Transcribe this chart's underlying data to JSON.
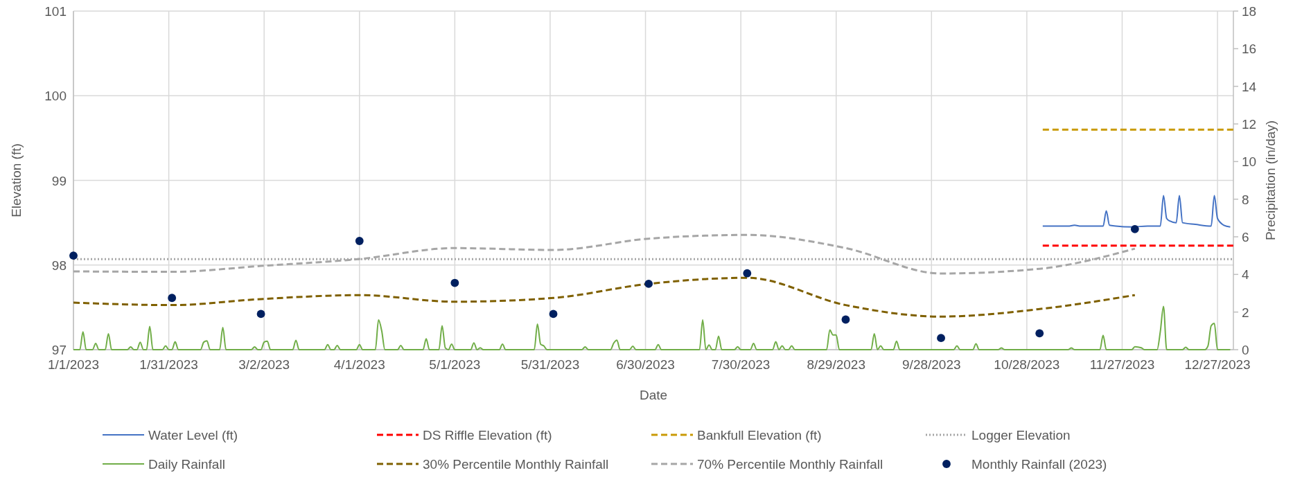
{
  "chart_data": {
    "type": "line",
    "xlabel": "Date",
    "ylabel": "Elevation (ft)",
    "y2label": "Precipitation (in/day)",
    "xlim": [
      "2023-01-01",
      "2024-01-01"
    ],
    "xticks": [
      {
        "value": "2023-01-01",
        "label": "1/1/2023"
      },
      {
        "value": "2023-01-31",
        "label": "1/31/2023"
      },
      {
        "value": "2023-03-02",
        "label": "3/2/2023"
      },
      {
        "value": "2023-04-01",
        "label": "4/1/2023"
      },
      {
        "value": "2023-05-01",
        "label": "5/1/2023"
      },
      {
        "value": "2023-05-31",
        "label": "5/31/2023"
      },
      {
        "value": "2023-06-30",
        "label": "6/30/2023"
      },
      {
        "value": "2023-07-30",
        "label": "7/30/2023"
      },
      {
        "value": "2023-08-29",
        "label": "8/29/2023"
      },
      {
        "value": "2023-09-28",
        "label": "9/28/2023"
      },
      {
        "value": "2023-10-28",
        "label": "10/28/2023"
      },
      {
        "value": "2023-11-27",
        "label": "11/27/2023"
      },
      {
        "value": "2023-12-27",
        "label": "12/27/2023"
      }
    ],
    "ylim": [
      97,
      101
    ],
    "yticks": [
      97,
      98,
      99,
      100,
      101
    ],
    "y2lim": [
      0,
      18
    ],
    "y2ticks": [
      0,
      2,
      4,
      6,
      8,
      10,
      12,
      14,
      16,
      18
    ],
    "grid": true,
    "legend": "bottom",
    "series": [
      {
        "name": "Water Level (ft)",
        "color": "#4472c4",
        "line_style": "solid",
        "x": [
          "2023-11-02",
          "2023-11-10",
          "2023-11-12",
          "2023-11-14",
          "2023-11-21",
          "2023-11-22",
          "2023-11-23",
          "2023-11-25",
          "2023-11-30",
          "2023-12-05",
          "2023-12-09",
          "2023-12-10",
          "2023-12-11",
          "2023-12-12",
          "2023-12-14",
          "2023-12-15",
          "2023-12-16",
          "2023-12-20",
          "2023-12-25",
          "2023-12-26",
          "2023-12-27",
          "2023-12-29",
          "2023-12-31"
        ],
        "values": [
          98.46,
          98.46,
          98.47,
          98.46,
          98.46,
          98.64,
          98.47,
          98.46,
          98.45,
          98.46,
          98.46,
          98.82,
          98.55,
          98.52,
          98.5,
          98.82,
          98.5,
          98.48,
          98.46,
          98.82,
          98.55,
          98.47,
          98.45
        ]
      },
      {
        "name": "DS Riffle Elevation (ft)",
        "color": "#ff0000",
        "line_style": "dashed",
        "x": [
          "2023-11-02",
          "2024-01-01"
        ],
        "values": [
          98.23,
          98.23
        ]
      },
      {
        "name": "Bankfull Elevation (ft)",
        "color": "#c99a06",
        "line_style": "dashed",
        "x": [
          "2023-11-02",
          "2024-01-01"
        ],
        "values": [
          99.6,
          99.6
        ]
      },
      {
        "name": "Logger Elevation",
        "color": "#a6a6a6",
        "line_style": "dotted",
        "x": [
          "2023-01-01",
          "2024-01-01"
        ],
        "values": [
          98.07,
          98.07
        ]
      },
      {
        "name": "Daily Rainfall",
        "color": "#70ad47",
        "line_style": "solid",
        "axis": "y2",
        "x": [
          "2023-01-01",
          "2023-01-03",
          "2023-01-04",
          "2023-01-05",
          "2023-01-07",
          "2023-01-08",
          "2023-01-09",
          "2023-01-11",
          "2023-01-12",
          "2023-01-13",
          "2023-01-18",
          "2023-01-19",
          "2023-01-20",
          "2023-01-21",
          "2023-01-22",
          "2023-01-23",
          "2023-01-24",
          "2023-01-25",
          "2023-01-26",
          "2023-01-29",
          "2023-01-30",
          "2023-01-31",
          "2023-02-01",
          "2023-02-02",
          "2023-02-03",
          "2023-02-10",
          "2023-02-11",
          "2023-02-12",
          "2023-02-13",
          "2023-02-16",
          "2023-02-17",
          "2023-02-18",
          "2023-02-26",
          "2023-02-27",
          "2023-02-28",
          "2023-03-01",
          "2023-03-02",
          "2023-03-03",
          "2023-03-04",
          "2023-03-11",
          "2023-03-12",
          "2023-03-13",
          "2023-03-21",
          "2023-03-22",
          "2023-03-23",
          "2023-03-24",
          "2023-03-25",
          "2023-03-26",
          "2023-03-31",
          "2023-04-01",
          "2023-04-02",
          "2023-04-06",
          "2023-04-07",
          "2023-04-08",
          "2023-04-09",
          "2023-04-13",
          "2023-04-14",
          "2023-04-15",
          "2023-04-21",
          "2023-04-22",
          "2023-04-23",
          "2023-04-26",
          "2023-04-27",
          "2023-04-28",
          "2023-04-29",
          "2023-04-30",
          "2023-05-01",
          "2023-05-06",
          "2023-05-07",
          "2023-05-08",
          "2023-05-09",
          "2023-05-10",
          "2023-05-15",
          "2023-05-16",
          "2023-05-17",
          "2023-05-26",
          "2023-05-27",
          "2023-05-28",
          "2023-05-29",
          "2023-05-30",
          "2023-06-10",
          "2023-06-11",
          "2023-06-12",
          "2023-06-19",
          "2023-06-20",
          "2023-06-21",
          "2023-06-22",
          "2023-06-25",
          "2023-06-26",
          "2023-06-27",
          "2023-07-03",
          "2023-07-04",
          "2023-07-05",
          "2023-07-17",
          "2023-07-18",
          "2023-07-19",
          "2023-07-20",
          "2023-07-21",
          "2023-07-22",
          "2023-07-23",
          "2023-07-24",
          "2023-07-28",
          "2023-07-29",
          "2023-07-30",
          "2023-08-02",
          "2023-08-03",
          "2023-08-04",
          "2023-08-09",
          "2023-08-10",
          "2023-08-11",
          "2023-08-12",
          "2023-08-13",
          "2023-08-14",
          "2023-08-15",
          "2023-08-16",
          "2023-08-26",
          "2023-08-27",
          "2023-08-28",
          "2023-08-29",
          "2023-08-30",
          "2023-09-09",
          "2023-09-10",
          "2023-09-11",
          "2023-09-12",
          "2023-09-13",
          "2023-09-16",
          "2023-09-17",
          "2023-09-18",
          "2023-10-05",
          "2023-10-06",
          "2023-10-07",
          "2023-10-11",
          "2023-10-12",
          "2023-10-13",
          "2023-10-19",
          "2023-10-20",
          "2023-10-21",
          "2023-11-10",
          "2023-11-11",
          "2023-11-12",
          "2023-11-20",
          "2023-11-21",
          "2023-11-22",
          "2023-11-30",
          "2023-12-01",
          "2023-12-03",
          "2023-12-04",
          "2023-12-08",
          "2023-12-09",
          "2023-12-10",
          "2023-12-11",
          "2023-12-16",
          "2023-12-17",
          "2023-12-18",
          "2023-12-23",
          "2023-12-24",
          "2023-12-25",
          "2023-12-26",
          "2023-12-27",
          "2023-12-31"
        ],
        "values": [
          0,
          0,
          0.95,
          0,
          0,
          0.33,
          0,
          0,
          0.85,
          0,
          0,
          0.15,
          0,
          0,
          0.4,
          0,
          0,
          1.23,
          0,
          0,
          0.2,
          0,
          0,
          0.42,
          0,
          0,
          0.4,
          0.47,
          0,
          0,
          1.18,
          0,
          0,
          0.15,
          0,
          0,
          0.4,
          0.45,
          0,
          0,
          0.5,
          0,
          0,
          0.27,
          0,
          0,
          0.22,
          0,
          0,
          0.27,
          0,
          0,
          1.58,
          1.0,
          0,
          0,
          0.22,
          0,
          0,
          0.58,
          0,
          0,
          1.27,
          0.1,
          0,
          0.29,
          0,
          0,
          0.36,
          0,
          0.1,
          0,
          0,
          0.29,
          0,
          0,
          1.36,
          0.29,
          0.2,
          0,
          0,
          0.15,
          0,
          0,
          0.35,
          0.51,
          0,
          0,
          0.18,
          0,
          0,
          0.27,
          0,
          0,
          1.58,
          0,
          0.25,
          0,
          0,
          0.72,
          0,
          0,
          0.16,
          0,
          0,
          0.33,
          0,
          0,
          0.42,
          0,
          0.2,
          0,
          0,
          0.2,
          0,
          0,
          1.05,
          0.78,
          0.78,
          0,
          0,
          0.85,
          0,
          0.2,
          0,
          0,
          0.45,
          0,
          0,
          0.2,
          0,
          0,
          0.31,
          0,
          0,
          0.09,
          0,
          0,
          0.09,
          0,
          0,
          0.76,
          0,
          0,
          0.16,
          0.1,
          0,
          0,
          0.96,
          2.3,
          0,
          0,
          0.13,
          0,
          0,
          0.2,
          1.27,
          1.4,
          0,
          0
        ]
      },
      {
        "name": "30% Percentile Monthly Rainfall",
        "color": "#7f6000",
        "line_style": "dashed",
        "axis": "y2",
        "x": [
          "2023-01-01",
          "2023-02-01",
          "2023-03-01",
          "2023-04-01",
          "2023-05-01",
          "2023-06-01",
          "2023-07-01",
          "2023-08-01",
          "2023-09-01",
          "2023-10-01",
          "2023-11-01",
          "2023-12-01"
        ],
        "values": [
          2.5,
          2.37,
          2.69,
          2.9,
          2.55,
          2.75,
          3.5,
          3.82,
          2.37,
          1.76,
          2.16,
          2.9
        ]
      },
      {
        "name": "70% Percentile Monthly Rainfall",
        "color": "#a6a6a6",
        "line_style": "dashed",
        "axis": "y2",
        "x": [
          "2023-01-01",
          "2023-02-01",
          "2023-03-01",
          "2023-04-01",
          "2023-05-01",
          "2023-06-01",
          "2023-07-01",
          "2023-08-01",
          "2023-09-01",
          "2023-10-01",
          "2023-11-01",
          "2023-12-01"
        ],
        "values": [
          4.16,
          4.14,
          4.45,
          4.82,
          5.4,
          5.3,
          5.9,
          6.1,
          5.4,
          4.05,
          4.3,
          5.37
        ]
      },
      {
        "name": "Monthly Rainfall (2023)",
        "color": "#002060",
        "type": "scatter",
        "marker": "circle",
        "axis": "y2",
        "x": [
          "2023-01-01",
          "2023-02-01",
          "2023-03-01",
          "2023-04-01",
          "2023-05-01",
          "2023-06-01",
          "2023-07-01",
          "2023-08-01",
          "2023-09-01",
          "2023-10-01",
          "2023-11-01",
          "2023-12-01"
        ],
        "values": [
          5.0,
          2.75,
          1.9,
          5.78,
          3.55,
          1.9,
          3.5,
          4.06,
          1.6,
          0.62,
          0.87,
          6.41
        ]
      }
    ]
  }
}
